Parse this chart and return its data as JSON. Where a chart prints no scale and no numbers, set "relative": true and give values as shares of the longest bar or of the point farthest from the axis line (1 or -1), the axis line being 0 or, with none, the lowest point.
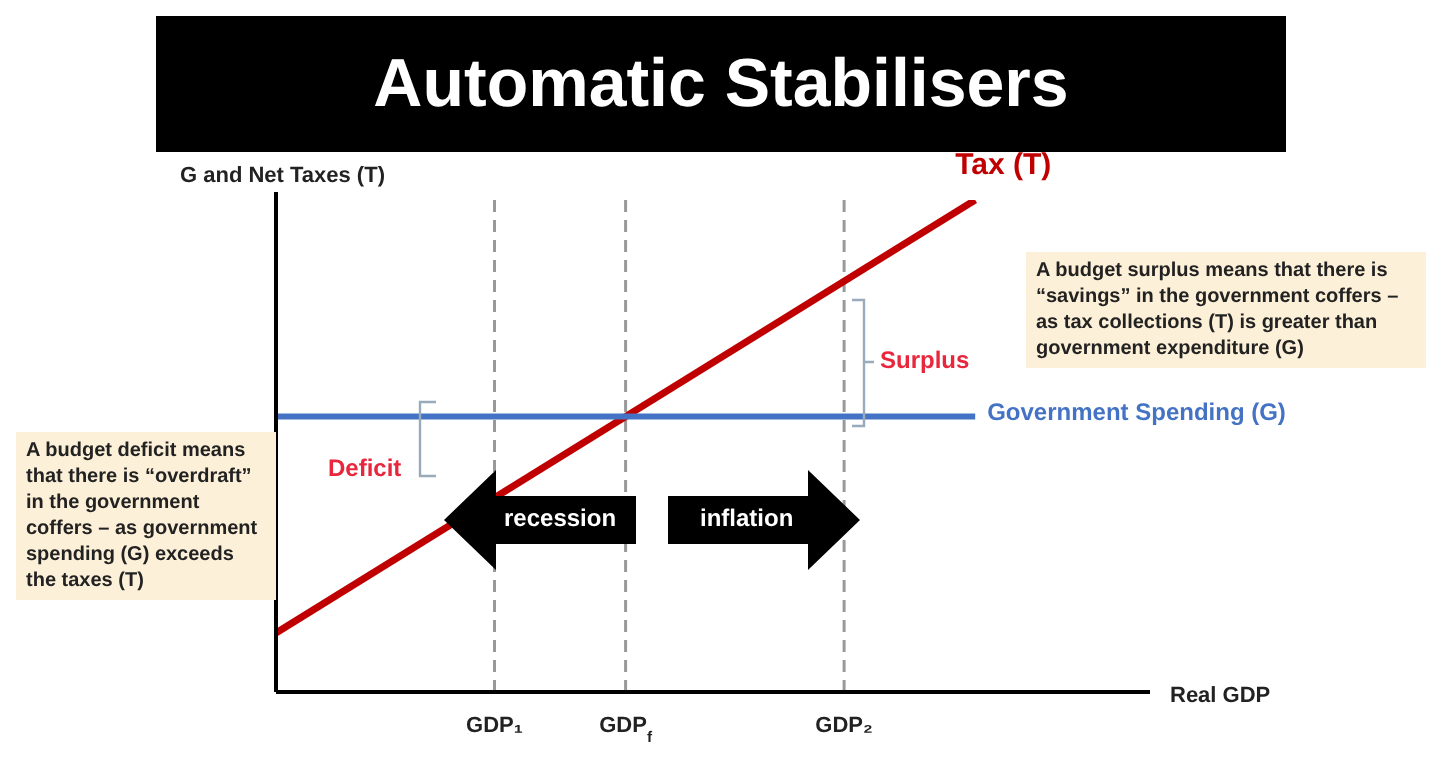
{
  "chart_data": {
    "type": "line",
    "title": "Automatic Stabilisers",
    "xlabel": "Real GDP",
    "ylabel": "G and Net Taxes (T)",
    "relative": true,
    "categories": [
      null,
      null,
      null,
      null,
      null,
      "GDP₁",
      null,
      null,
      "GDP$_{f}$",
      null,
      null,
      null,
      null,
      "GDP₂",
      null,
      null,
      null,
      null,
      null,
      null,
      null
    ],
    "series": [
      {
        "name": "Tax (T)",
        "color": "#c00000",
        "values": [
          0.12,
          null,
          null,
          null,
          null,
          null,
          null,
          null,
          null,
          null,
          null,
          null,
          null,
          null,
          null,
          null,
          1,
          null,
          null,
          null,
          null
        ]
      },
      {
        "name": "Government Spending (G)",
        "color": "#4472c4",
        "values": [
          0.56,
          null,
          null,
          null,
          null,
          null,
          null,
          null,
          null,
          null,
          null,
          null,
          null,
          null,
          null,
          null,
          0.56,
          null,
          null,
          null,
          null
        ]
      }
    ],
    "annotations": [
      "A budget deficit means that there is “overdraft” in the government coffers – as government spending (G) exceeds the taxes (T)",
      "A budget surplus means that there is “savings” in the government coffers – as tax collections (T) is greater than government expenditure (G)",
      "Deficit",
      "Surplus",
      "recession",
      "inflation"
    ],
    "grid": "x",
    "marker": "none",
    "line_style": "solid"
  }
}
